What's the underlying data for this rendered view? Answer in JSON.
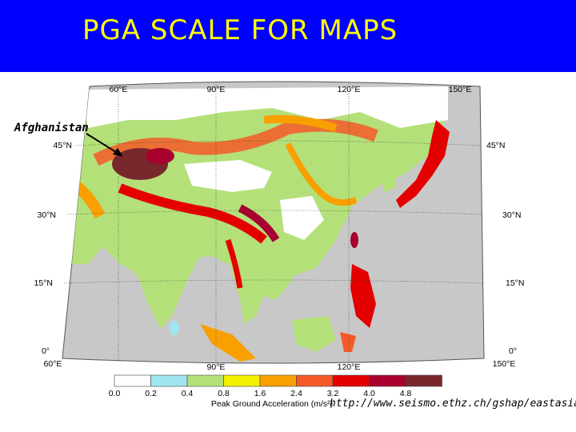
{
  "title": "PGA SCALE FOR MAPS",
  "annotation": {
    "label": "Afghanistan"
  },
  "source_url": "http://www.seismo.ethz.ch/gshap/eastasia/",
  "colors": {
    "title_bg": "#0000ff",
    "title_text": "#ffff00",
    "ocean": "#c8c8c8"
  },
  "map": {
    "top_ticks": [
      "60°E",
      "90°E",
      "120°E",
      "150°E"
    ],
    "bottom_ticks": [
      "60°E",
      "90°E",
      "120°E",
      "150°E"
    ],
    "left_ticks": [
      "45°N",
      "30°N",
      "15°N",
      "0°"
    ],
    "right_ticks": [
      "45°N",
      "30°N",
      "15°N",
      "0°"
    ]
  },
  "legend": {
    "title": "Peak Ground Acceleration (m/s²)",
    "labels": [
      "0.0",
      "0.2",
      "0.4",
      "0.8",
      "1.6",
      "2.4",
      "3.2",
      "4.0",
      "4.8"
    ],
    "colors": [
      "#ffffff",
      "#9fe6f0",
      "#b4e07a",
      "#f4f000",
      "#f9a000",
      "#f55a28",
      "#e40000",
      "#a8002f",
      "#78282d"
    ]
  }
}
